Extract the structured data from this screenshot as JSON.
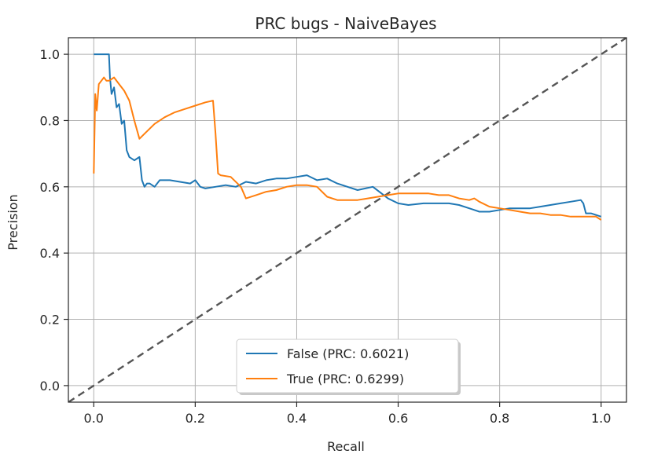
{
  "chart_data": {
    "type": "line",
    "title": "PRC bugs - NaiveBayes",
    "xlabel": "Recall",
    "ylabel": "Precision",
    "xlim": [
      -0.05,
      1.05
    ],
    "ylim": [
      -0.05,
      1.05
    ],
    "xticks": [
      0.0,
      0.2,
      0.4,
      0.6,
      0.8,
      1.0
    ],
    "yticks": [
      0.0,
      0.2,
      0.4,
      0.6,
      0.8,
      1.0
    ],
    "xtick_labels": [
      "0.0",
      "0.2",
      "0.4",
      "0.6",
      "0.8",
      "1.0"
    ],
    "ytick_labels": [
      "0.0",
      "0.2",
      "0.4",
      "0.6",
      "0.8",
      "1.0"
    ],
    "grid": true,
    "legend_position": "lower-center",
    "series": [
      {
        "name": "False (PRC: 0.6021)",
        "color": "#1f77b4",
        "x": [
          0.0,
          0.01,
          0.02,
          0.03,
          0.032,
          0.035,
          0.04,
          0.045,
          0.05,
          0.055,
          0.06,
          0.065,
          0.07,
          0.08,
          0.09,
          0.095,
          0.1,
          0.105,
          0.11,
          0.12,
          0.13,
          0.15,
          0.17,
          0.19,
          0.2,
          0.21,
          0.22,
          0.24,
          0.26,
          0.28,
          0.3,
          0.32,
          0.34,
          0.36,
          0.38,
          0.4,
          0.42,
          0.44,
          0.46,
          0.48,
          0.5,
          0.52,
          0.55,
          0.58,
          0.6,
          0.62,
          0.65,
          0.7,
          0.72,
          0.74,
          0.75,
          0.76,
          0.78,
          0.8,
          0.82,
          0.84,
          0.86,
          0.88,
          0.9,
          0.92,
          0.94,
          0.96,
          0.965,
          0.97,
          0.98,
          0.99,
          1.0
        ],
        "y": [
          1.0,
          1.0,
          1.0,
          1.0,
          0.93,
          0.88,
          0.9,
          0.84,
          0.85,
          0.79,
          0.8,
          0.71,
          0.69,
          0.68,
          0.69,
          0.62,
          0.6,
          0.61,
          0.61,
          0.6,
          0.62,
          0.62,
          0.615,
          0.61,
          0.62,
          0.6,
          0.595,
          0.6,
          0.605,
          0.6,
          0.615,
          0.61,
          0.62,
          0.625,
          0.625,
          0.63,
          0.635,
          0.62,
          0.625,
          0.61,
          0.6,
          0.59,
          0.6,
          0.565,
          0.55,
          0.545,
          0.55,
          0.55,
          0.545,
          0.535,
          0.53,
          0.525,
          0.525,
          0.53,
          0.535,
          0.535,
          0.535,
          0.54,
          0.545,
          0.55,
          0.555,
          0.56,
          0.55,
          0.52,
          0.52,
          0.515,
          0.51
        ]
      },
      {
        "name": "True (PRC: 0.6299)",
        "color": "#ff7f0e",
        "x": [
          0.0,
          0.003,
          0.006,
          0.01,
          0.015,
          0.02,
          0.025,
          0.03,
          0.04,
          0.05,
          0.06,
          0.07,
          0.08,
          0.09,
          0.1,
          0.12,
          0.14,
          0.16,
          0.18,
          0.2,
          0.22,
          0.235,
          0.24,
          0.245,
          0.25,
          0.27,
          0.29,
          0.3,
          0.32,
          0.34,
          0.36,
          0.38,
          0.4,
          0.42,
          0.44,
          0.46,
          0.48,
          0.5,
          0.52,
          0.54,
          0.56,
          0.58,
          0.6,
          0.62,
          0.64,
          0.66,
          0.68,
          0.7,
          0.72,
          0.74,
          0.75,
          0.76,
          0.78,
          0.8,
          0.82,
          0.84,
          0.86,
          0.88,
          0.9,
          0.92,
          0.94,
          0.96,
          0.98,
          0.99,
          1.0
        ],
        "y": [
          0.64,
          0.88,
          0.83,
          0.91,
          0.92,
          0.93,
          0.92,
          0.92,
          0.93,
          0.91,
          0.89,
          0.86,
          0.8,
          0.745,
          0.76,
          0.79,
          0.81,
          0.825,
          0.835,
          0.845,
          0.855,
          0.86,
          0.76,
          0.64,
          0.635,
          0.63,
          0.6,
          0.565,
          0.575,
          0.585,
          0.59,
          0.6,
          0.605,
          0.605,
          0.6,
          0.57,
          0.56,
          0.56,
          0.56,
          0.565,
          0.57,
          0.575,
          0.58,
          0.58,
          0.58,
          0.58,
          0.575,
          0.575,
          0.565,
          0.56,
          0.565,
          0.555,
          0.54,
          0.535,
          0.53,
          0.525,
          0.52,
          0.52,
          0.515,
          0.515,
          0.51,
          0.51,
          0.51,
          0.51,
          0.5
        ]
      }
    ],
    "reference_line": {
      "style": "dashed",
      "color": "#555555",
      "x": [
        -0.05,
        1.05
      ],
      "y": [
        -0.05,
        1.05
      ]
    }
  }
}
